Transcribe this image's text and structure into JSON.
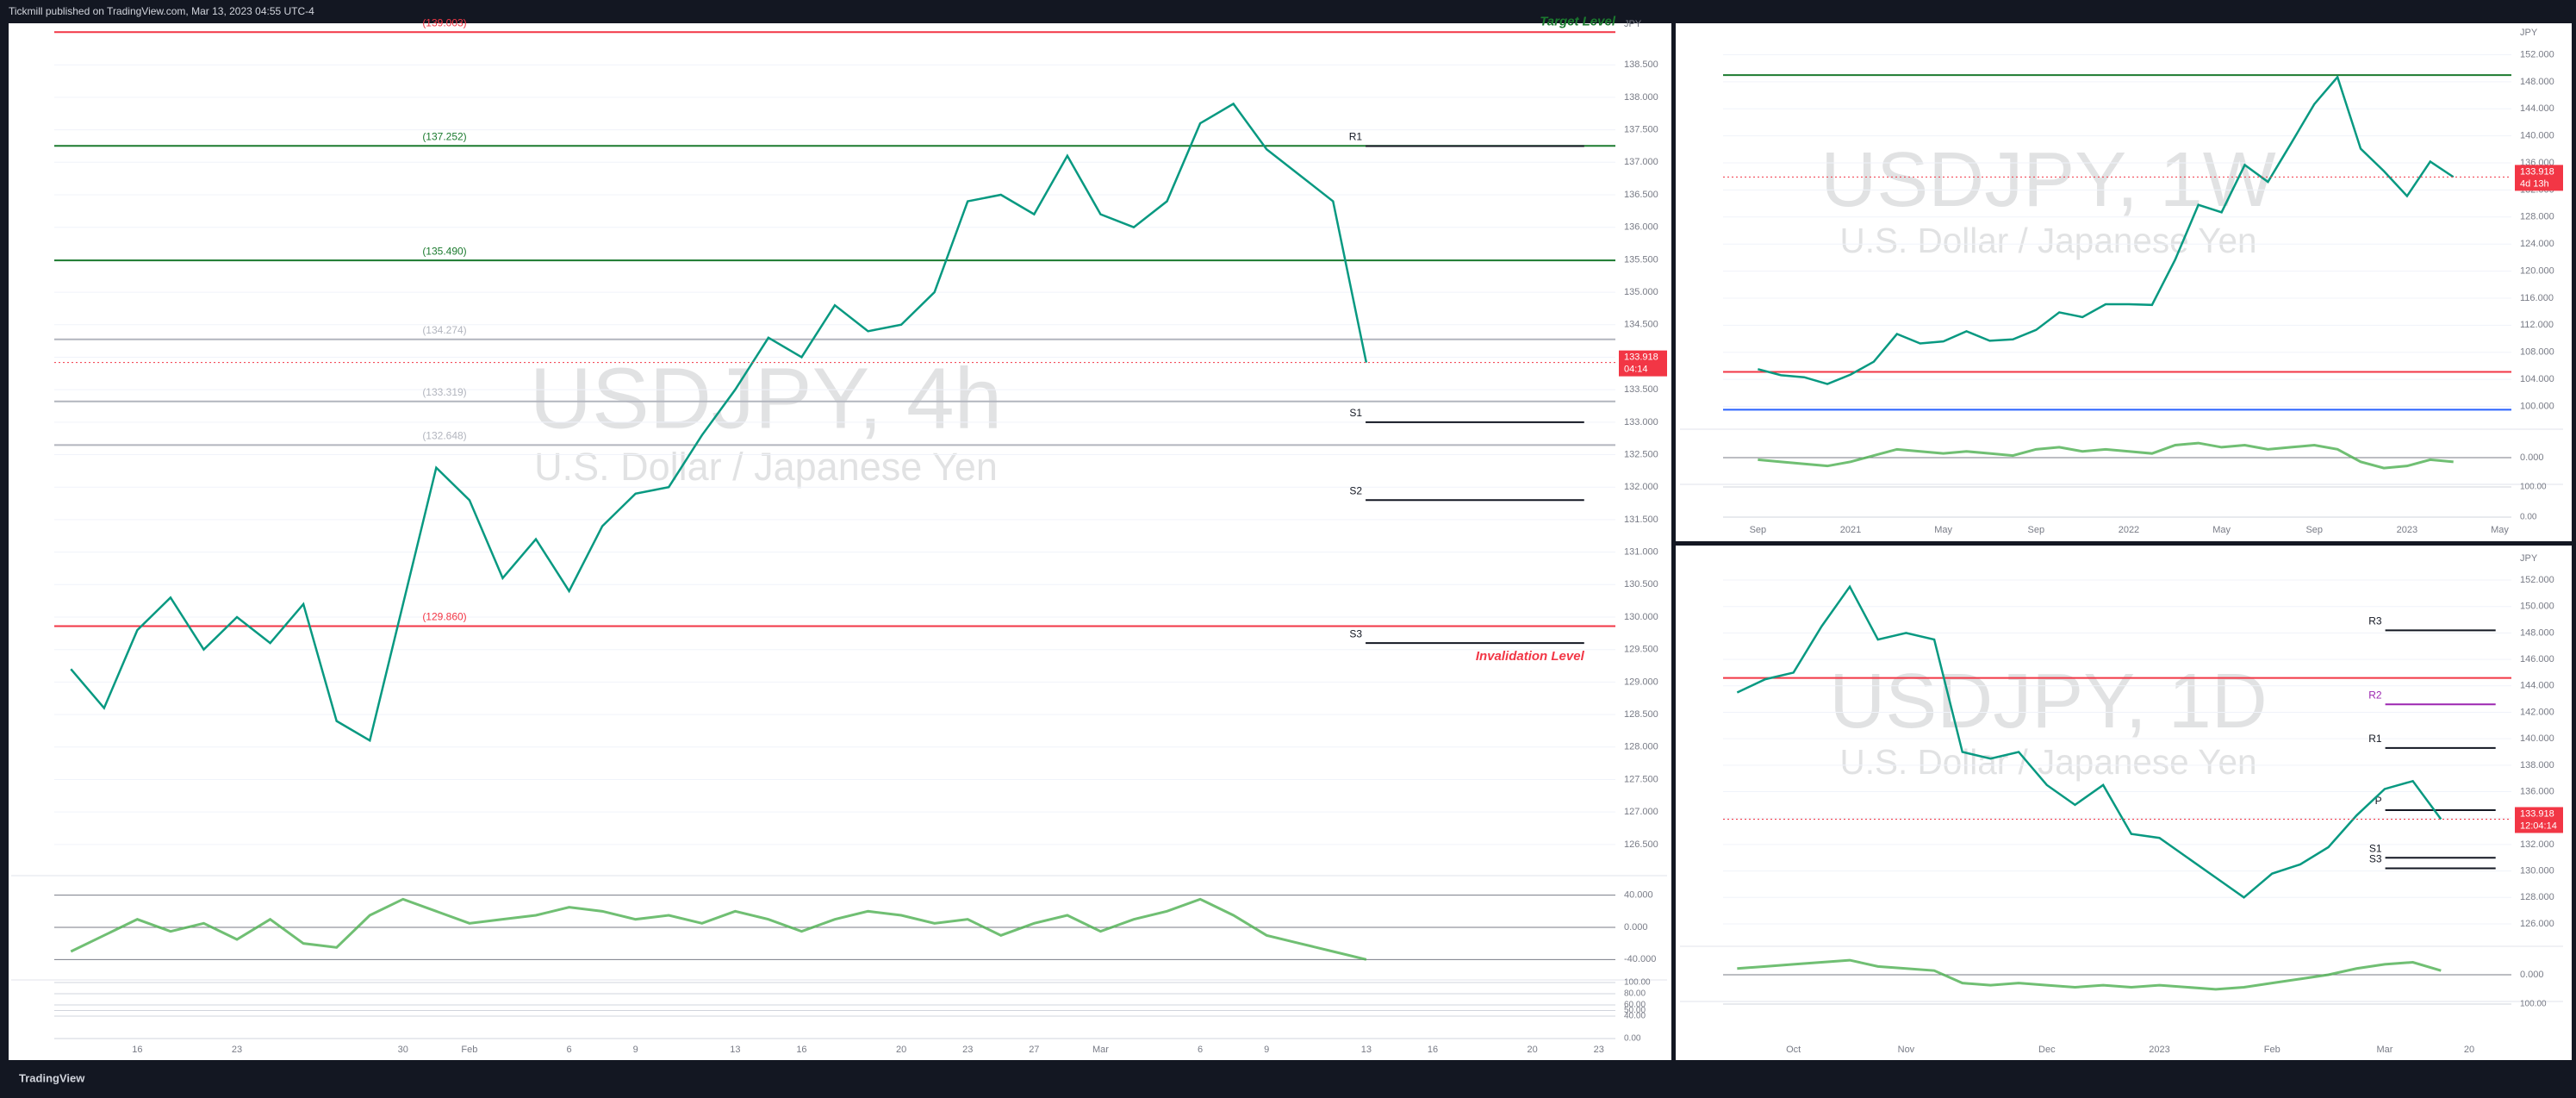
{
  "header": {
    "text": "Tickmill published on TradingView.com, Mar 13, 2023 04:55 UTC-4"
  },
  "footer": {
    "brand": "TradingView"
  },
  "chart_data": [
    {
      "type": "line",
      "title": "USDJPY, 4h",
      "subtitle": "U.S. Dollar / Japanese Yen",
      "currency": "JPY",
      "color": "#089981",
      "categories": [
        null,
        null,
        "16",
        null,
        null,
        "23",
        null,
        null,
        null,
        null,
        "30",
        null,
        "Feb",
        null,
        null,
        "6",
        null,
        "9",
        null,
        null,
        "13",
        null,
        "16",
        null,
        null,
        "20",
        null,
        "23",
        null,
        "27",
        null,
        "Mar",
        null,
        null,
        "6",
        null,
        "9",
        null,
        null,
        "13",
        null,
        "16",
        null,
        null,
        "20",
        null,
        "23"
      ],
      "values": [
        129.2,
        128.6,
        129.8,
        130.3,
        129.5,
        130.0,
        129.6,
        130.2,
        128.4,
        128.1,
        130.2,
        132.3,
        131.8,
        130.6,
        131.2,
        130.4,
        131.4,
        131.9,
        132.0,
        132.8,
        133.5,
        134.3,
        134.0,
        134.8,
        134.4,
        134.5,
        135.0,
        136.4,
        136.5,
        136.2,
        137.1,
        136.2,
        136.0,
        136.4,
        137.6,
        137.9,
        137.2,
        136.8,
        136.4,
        133.918,
        null,
        null,
        null,
        null,
        null,
        null,
        null
      ],
      "ylim": [
        126.1,
        139.1
      ],
      "yticks": [
        {
          "value": 126.5,
          "label": "126.500"
        },
        {
          "value": 127,
          "label": "127.000"
        },
        {
          "value": 127.5,
          "label": "127.500"
        },
        {
          "value": 128,
          "label": "128.000"
        },
        {
          "value": 128.5,
          "label": "128.500"
        },
        {
          "value": 129,
          "label": "129.000"
        },
        {
          "value": 129.5,
          "label": "129.500"
        },
        {
          "value": 130,
          "label": "130.000"
        },
        {
          "value": 130.5,
          "label": "130.500"
        },
        {
          "value": 131,
          "label": "131.000"
        },
        {
          "value": 131.5,
          "label": "131.500"
        },
        {
          "value": 132,
          "label": "132.000"
        },
        {
          "value": 132.5,
          "label": "132.500"
        },
        {
          "value": 133,
          "label": "133.000"
        },
        {
          "value": 133.5,
          "label": "133.500"
        },
        {
          "value": 134,
          "label": "134.000"
        },
        {
          "value": 134.5,
          "label": "134.500"
        },
        {
          "value": 135,
          "label": "135.000"
        },
        {
          "value": 135.5,
          "label": "135.500"
        },
        {
          "value": 136,
          "label": "136.000"
        },
        {
          "value": 136.5,
          "label": "136.500"
        },
        {
          "value": 137,
          "label": "137.000"
        },
        {
          "value": 137.5,
          "label": "137.500"
        },
        {
          "value": 138,
          "label": "138.000"
        },
        {
          "value": 138.5,
          "label": "138.500"
        }
      ],
      "levels": [
        {
          "kind": "fib",
          "label": "(139.003)",
          "value": 139.003,
          "color": "#f23645",
          "note": "Target Level"
        },
        {
          "kind": "fib",
          "label": "(137.252)",
          "value": 137.252,
          "color": "#1b7a2e"
        },
        {
          "kind": "fib",
          "label": "(135.490)",
          "value": 135.49,
          "color": "#1b7a2e"
        },
        {
          "kind": "fib",
          "label": "(134.274)",
          "value": 134.274,
          "color": "#b2b5be"
        },
        {
          "kind": "fib",
          "label": "(133.319)",
          "value": 133.319,
          "color": "#b2b5be"
        },
        {
          "kind": "fib",
          "label": "(132.648)",
          "value": 132.648,
          "color": "#b2b5be"
        },
        {
          "kind": "fib",
          "label": "(129.860)",
          "value": 129.86,
          "color": "#f23645"
        },
        {
          "kind": "pivot",
          "label": "R1",
          "value": 137.25,
          "color": "#131722"
        },
        {
          "kind": "pivot",
          "label": "S1",
          "value": 133.0,
          "color": "#131722"
        },
        {
          "kind": "pivot",
          "label": "S2",
          "value": 131.8,
          "color": "#131722"
        },
        {
          "kind": "pivot",
          "label": "S3",
          "value": 129.6,
          "color": "#131722",
          "note": "Invalidation Level"
        }
      ],
      "last": 133.918,
      "countdown": "04:14",
      "oscillator": {
        "ylim": [
          -60,
          60
        ],
        "yticks": [
          {
            "value": 40,
            "label": "40.000"
          },
          {
            "value": 0,
            "label": "0.000"
          },
          {
            "value": -40,
            "label": "-40.000"
          }
        ],
        "values": [
          -30,
          -10,
          10,
          -5,
          5,
          -15,
          10,
          -20,
          -25,
          15,
          35,
          20,
          5,
          10,
          15,
          25,
          20,
          10,
          15,
          5,
          20,
          10,
          -5,
          10,
          20,
          15,
          5,
          10,
          -10,
          5,
          15,
          -5,
          10,
          20,
          35,
          15,
          -10,
          -20,
          -30,
          -40
        ]
      },
      "stoch": {
        "ylim": [
          0,
          100
        ],
        "yticks": [
          {
            "value": 100,
            "label": "100.00"
          },
          {
            "value": 80,
            "label": "80.00"
          },
          {
            "value": 60,
            "label": "60.00"
          },
          {
            "value": 50,
            "label": "50.00"
          },
          {
            "value": 40,
            "label": "40.00"
          },
          {
            "value": 0,
            "label": "0.00"
          }
        ]
      }
    },
    {
      "type": "line",
      "title": "USDJPY, 1W",
      "subtitle": "U.S. Dollar / Japanese Yen",
      "currency": "JPY",
      "color": "#089981",
      "categories": [
        null,
        "Sep",
        null,
        null,
        null,
        "2021",
        null,
        null,
        null,
        "May",
        null,
        null,
        null,
        "Sep",
        null,
        null,
        null,
        "2022",
        null,
        null,
        null,
        "May",
        null,
        null,
        null,
        "Sep",
        null,
        null,
        null,
        "2023",
        null,
        null,
        null,
        "May"
      ],
      "values": [
        null,
        105.5,
        104.6,
        104.3,
        103.3,
        104.7,
        106.6,
        110.7,
        109.3,
        109.6,
        111.1,
        109.7,
        109.9,
        111.3,
        113.9,
        113.2,
        115.1,
        115.1,
        115.0,
        121.7,
        129.8,
        128.7,
        135.7,
        133.2,
        138.9,
        144.7,
        148.7,
        138.1,
        134.8,
        131.1,
        136.2,
        133.918,
        null,
        null
      ],
      "ylim": [
        97,
        155
      ],
      "yticks": [
        {
          "value": 100,
          "label": "100.000"
        },
        {
          "value": 104,
          "label": "104.000"
        },
        {
          "value": 108,
          "label": "108.000"
        },
        {
          "value": 112,
          "label": "112.000"
        },
        {
          "value": 116,
          "label": "116.000"
        },
        {
          "value": 120,
          "label": "120.000"
        },
        {
          "value": 124,
          "label": "124.000"
        },
        {
          "value": 128,
          "label": "128.000"
        },
        {
          "value": 132,
          "label": "132.000"
        },
        {
          "value": 136,
          "label": "136.000"
        },
        {
          "value": 140,
          "label": "140.000"
        },
        {
          "value": 144,
          "label": "144.000"
        },
        {
          "value": 148,
          "label": "148.000"
        },
        {
          "value": 152,
          "label": "152.000"
        }
      ],
      "levels": [
        {
          "kind": "line",
          "value": 149.0,
          "color": "#1b7a2e"
        },
        {
          "kind": "line",
          "value": 105.1,
          "color": "#f23645"
        },
        {
          "kind": "line",
          "value": 99.5,
          "color": "#2962ff"
        }
      ],
      "last": 133.918,
      "countdown": "4d 13h",
      "oscillator": {
        "ylim": [
          -60,
          60
        ],
        "yticks": [
          {
            "value": 0,
            "label": "0.000"
          }
        ],
        "values": [
          null,
          -5,
          -10,
          -15,
          -20,
          -10,
          5,
          20,
          15,
          10,
          15,
          10,
          5,
          20,
          25,
          15,
          20,
          15,
          10,
          30,
          35,
          25,
          30,
          20,
          25,
          30,
          20,
          -10,
          -25,
          -20,
          -5,
          -10,
          null,
          null
        ]
      },
      "stoch": {
        "ylim": [
          0,
          100
        ],
        "yticks": [
          {
            "value": 100,
            "label": "100.00"
          },
          {
            "value": 0,
            "label": "0.00"
          }
        ]
      }
    },
    {
      "type": "line",
      "title": "USDJPY, 1D",
      "subtitle": "U.S. Dollar / Japanese Yen",
      "currency": "JPY",
      "color": "#089981",
      "categories": [
        null,
        null,
        "Oct",
        null,
        null,
        null,
        "Nov",
        null,
        null,
        null,
        null,
        "Dec",
        null,
        null,
        null,
        "2023",
        null,
        null,
        null,
        "Feb",
        null,
        null,
        null,
        "Mar",
        null,
        null,
        "20",
        null
      ],
      "values": [
        143.5,
        144.5,
        145.0,
        148.5,
        151.5,
        147.5,
        148.0,
        147.5,
        139.0,
        138.5,
        139.0,
        136.5,
        135.0,
        136.5,
        132.8,
        132.5,
        131.0,
        129.5,
        128.0,
        129.8,
        130.5,
        131.8,
        134.2,
        136.2,
        136.8,
        133.918,
        null,
        null
      ],
      "ylim": [
        124.5,
        153.5
      ],
      "yticks": [
        {
          "value": 126,
          "label": "126.000"
        },
        {
          "value": 128,
          "label": "128.000"
        },
        {
          "value": 130,
          "label": "130.000"
        },
        {
          "value": 132,
          "label": "132.000"
        },
        {
          "value": 134,
          "label": "134.000"
        },
        {
          "value": 136,
          "label": "136.000"
        },
        {
          "value": 138,
          "label": "138.000"
        },
        {
          "value": 140,
          "label": "140.000"
        },
        {
          "value": 142,
          "label": "142.000"
        },
        {
          "value": 144,
          "label": "144.000"
        },
        {
          "value": 146,
          "label": "146.000"
        },
        {
          "value": 148,
          "label": "148.000"
        },
        {
          "value": 150,
          "label": "150.000"
        },
        {
          "value": 152,
          "label": "152.000"
        }
      ],
      "levels": [
        {
          "kind": "line",
          "value": 144.6,
          "color": "#f23645"
        },
        {
          "kind": "pivot",
          "label": "R3",
          "value": 148.2,
          "color": "#131722"
        },
        {
          "kind": "pivot",
          "label": "R2",
          "value": 142.6,
          "color": "#9c27b0"
        },
        {
          "kind": "pivot",
          "label": "R1",
          "value": 139.3,
          "color": "#131722"
        },
        {
          "kind": "pivot",
          "label": "P",
          "value": 134.6,
          "color": "#131722"
        },
        {
          "kind": "pivot",
          "label": "S1",
          "value": 131.0,
          "color": "#131722"
        },
        {
          "kind": "pivot",
          "label": "S3",
          "value": 130.2,
          "color": "#131722"
        }
      ],
      "last": 133.918,
      "countdown": "12:04:14",
      "oscillator": {
        "ylim": [
          -60,
          60
        ],
        "yticks": [
          {
            "value": 0,
            "label": "0.000"
          }
        ],
        "values": [
          15,
          20,
          25,
          30,
          35,
          20,
          15,
          10,
          -20,
          -25,
          -20,
          -25,
          -30,
          -25,
          -30,
          -25,
          -30,
          -35,
          -30,
          -20,
          -10,
          0,
          15,
          25,
          30,
          10,
          null,
          null
        ]
      },
      "stoch": {
        "ylim": [
          0,
          100
        ],
        "yticks": [
          {
            "value": 100,
            "label": "100.00"
          }
        ]
      }
    }
  ]
}
